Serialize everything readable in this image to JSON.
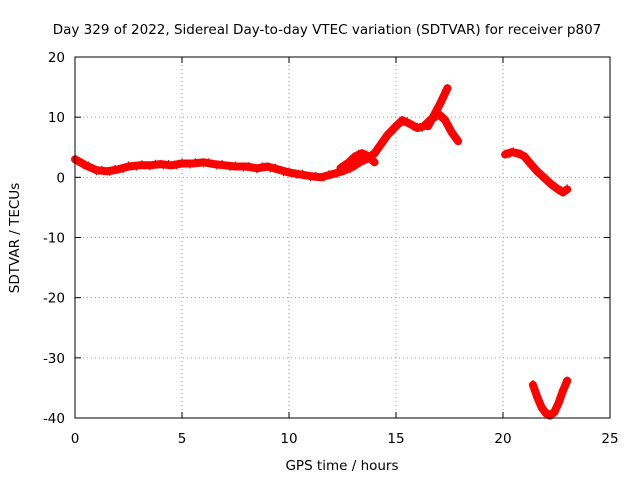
{
  "chart_data": {
    "type": "scatter",
    "title": "Day 329 of 2022, Sidereal Day-to-day VTEC variation (SDTVAR) for receiver p807",
    "xlabel": "GPS time / hours",
    "ylabel": "SDTVAR / TECUs",
    "xlim": [
      0,
      25
    ],
    "ylim": [
      -40,
      20
    ],
    "grid": true,
    "x_ticks": [
      {
        "value": 0,
        "label": "0"
      },
      {
        "value": 5,
        "label": "5"
      },
      {
        "value": 10,
        "label": "10"
      },
      {
        "value": 15,
        "label": "15"
      },
      {
        "value": 20,
        "label": "20"
      },
      {
        "value": 25,
        "label": "25"
      }
    ],
    "y_ticks": [
      {
        "value": -40,
        "label": "-40"
      },
      {
        "value": -30,
        "label": "-30"
      },
      {
        "value": -20,
        "label": "-20"
      },
      {
        "value": -10,
        "label": "-10"
      },
      {
        "value": 0,
        "label": "0"
      },
      {
        "value": 10,
        "label": "10"
      },
      {
        "value": 20,
        "label": "20"
      }
    ],
    "series": [
      {
        "name": "segment-main",
        "color": "#ff0000",
        "x": [
          0.0,
          0.5,
          1.0,
          1.5,
          2.0,
          2.5,
          3.0,
          3.5,
          4.0,
          4.5,
          5.0,
          5.5,
          6.0,
          6.5,
          7.0,
          7.5,
          8.0,
          8.5,
          9.0,
          9.5,
          10.0,
          10.5,
          11.0,
          11.5,
          12.0,
          12.5,
          13.0,
          13.3,
          13.6,
          14.0,
          14.3,
          14.6,
          15.0,
          15.3,
          15.6,
          16.0,
          16.3,
          16.6,
          17.0,
          17.3,
          17.6,
          17.9
        ],
        "y": [
          3.0,
          2.0,
          1.2,
          1.0,
          1.3,
          1.8,
          2.0,
          2.0,
          2.2,
          2.0,
          2.3,
          2.3,
          2.5,
          2.2,
          2.0,
          1.8,
          1.8,
          1.5,
          1.8,
          1.3,
          0.8,
          0.5,
          0.2,
          0.0,
          0.5,
          1.0,
          1.8,
          2.5,
          3.0,
          4.0,
          5.5,
          7.0,
          8.5,
          9.5,
          9.0,
          8.2,
          8.5,
          9.5,
          10.5,
          9.5,
          7.5,
          6.0
        ]
      },
      {
        "name": "segment-peak",
        "color": "#ff0000",
        "x": [
          16.5,
          16.8,
          17.1,
          17.4
        ],
        "y": [
          8.5,
          10.5,
          12.5,
          14.8
        ]
      },
      {
        "name": "segment-bump",
        "color": "#ff0000",
        "x": [
          12.4,
          12.8,
          13.1,
          13.4,
          13.7,
          14.0
        ],
        "y": [
          1.5,
          2.5,
          3.5,
          4.0,
          3.5,
          2.5
        ]
      },
      {
        "name": "segment-evening",
        "color": "#ff0000",
        "x": [
          20.1,
          20.4,
          20.7,
          21.0,
          21.3,
          21.6,
          21.9,
          22.2,
          22.5,
          22.8,
          23.0
        ],
        "y": [
          3.8,
          4.2,
          4.0,
          3.5,
          2.2,
          1.0,
          0.0,
          -1.0,
          -1.8,
          -2.5,
          -2.0
        ]
      },
      {
        "name": "segment-dip",
        "color": "#ff0000",
        "x": [
          21.4,
          21.6,
          21.8,
          22.0,
          22.2,
          22.4,
          22.6,
          22.8,
          23.0
        ],
        "y": [
          -34.5,
          -36.5,
          -38.2,
          -39.2,
          -39.6,
          -39.0,
          -37.5,
          -35.5,
          -33.8
        ]
      }
    ]
  }
}
